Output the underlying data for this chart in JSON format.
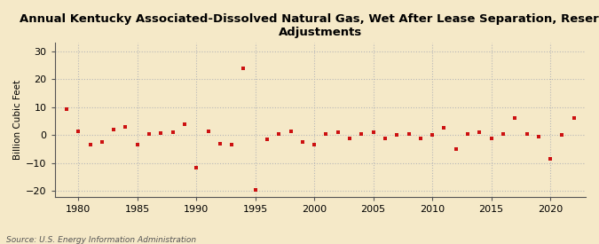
{
  "title": "Annual Kentucky Associated-Dissolved Natural Gas, Wet After Lease Separation, Reserves\nAdjustments",
  "ylabel": "Billion Cubic Feet",
  "source": "Source: U.S. Energy Information Administration",
  "background_color": "#f5e9c8",
  "plot_background_color": "#f5e9c8",
  "point_color": "#cc1111",
  "marker": "s",
  "markersize": 3.5,
  "xlim": [
    1978,
    2023
  ],
  "ylim": [
    -22,
    33
  ],
  "yticks": [
    -20,
    -10,
    0,
    10,
    20,
    30
  ],
  "xticks": [
    1980,
    1985,
    1990,
    1995,
    2000,
    2005,
    2010,
    2015,
    2020
  ],
  "years": [
    1979,
    1980,
    1981,
    1982,
    1983,
    1984,
    1985,
    1986,
    1987,
    1988,
    1989,
    1990,
    1991,
    1992,
    1993,
    1994,
    1995,
    1996,
    1997,
    1998,
    1999,
    2000,
    2001,
    2002,
    2003,
    2004,
    2005,
    2006,
    2007,
    2008,
    2009,
    2010,
    2011,
    2012,
    2013,
    2014,
    2015,
    2016,
    2017,
    2018,
    2019,
    2020,
    2021,
    2022
  ],
  "values": [
    9.3,
    1.5,
    -3.5,
    -2.5,
    2.0,
    3.0,
    -3.5,
    0.3,
    0.8,
    1.2,
    4.0,
    -11.5,
    1.5,
    -3.0,
    -3.5,
    24.0,
    -19.5,
    -1.5,
    0.5,
    1.5,
    -2.5,
    -3.5,
    0.5,
    1.0,
    -1.0,
    0.5,
    1.0,
    -1.0,
    0.0,
    0.5,
    -1.0,
    0.0,
    2.5,
    -5.0,
    0.5,
    1.0,
    -1.0,
    0.5,
    6.0,
    0.5,
    -0.5,
    -8.5,
    0.0,
    6.0
  ],
  "title_fontsize": 9.5,
  "tick_fontsize": 8,
  "ylabel_fontsize": 7.5,
  "source_fontsize": 6.5,
  "grid_color": "#b8b8b8",
  "grid_linestyle": ":",
  "spine_color": "#555555"
}
